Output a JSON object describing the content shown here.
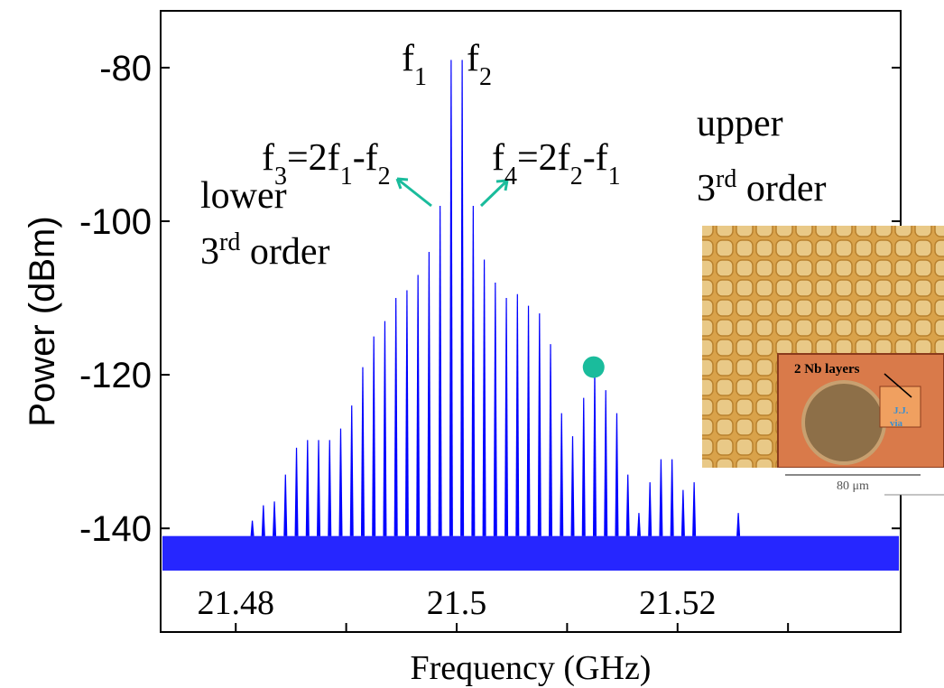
{
  "chart_data": {
    "type": "spectrum",
    "x_label": "Frequency (GHz)",
    "y_label": "Power (dBm)",
    "xlim": [
      21.4732,
      21.5402
    ],
    "ylim": [
      -153.5,
      -72.6
    ],
    "xticks": [
      21.48,
      21.5,
      21.52
    ],
    "xticks_minor": [
      21.49,
      21.51,
      21.53
    ],
    "yticks": [
      -80,
      -100,
      -120,
      -140
    ],
    "color": "#0000ff",
    "noise_band": [
      -145.5,
      -141
    ],
    "x": [
      21.4815,
      21.4825,
      21.4835,
      21.4845,
      21.4855,
      21.4865,
      21.4875,
      21.4885,
      21.4895,
      21.4905,
      21.4915,
      21.4925,
      21.4935,
      21.4945,
      21.4955,
      21.4965,
      21.4975,
      21.4985,
      21.4995,
      21.5005,
      21.5015,
      21.5025,
      21.5035,
      21.5045,
      21.5055,
      21.5065,
      21.5075,
      21.5085,
      21.5095,
      21.5105,
      21.5115,
      21.5125,
      21.5135,
      21.5145,
      21.5155,
      21.5165,
      21.5175,
      21.5185,
      21.5195,
      21.5205,
      21.5215,
      21.5255
    ],
    "values": [
      -139,
      -137,
      -136.5,
      -133,
      -129.5,
      -128.5,
      -128.5,
      -128.5,
      -127,
      -124,
      -119,
      -115,
      -113,
      -110,
      -109,
      -107,
      -104,
      -98,
      -79,
      -79,
      -98,
      -105,
      -108,
      -110,
      -109.5,
      -111,
      -112,
      -116,
      -125,
      -128,
      -123,
      -119,
      -122,
      -125,
      -133,
      -138,
      -134,
      -131,
      -131,
      -135,
      -134,
      -138
    ],
    "marker": {
      "x": 21.5124,
      "y": -119,
      "color": "#1abc9c"
    },
    "annotations": [
      {
        "parts": [
          {
            "text": "f",
            "sub": "1"
          }
        ]
      },
      {
        "parts": [
          {
            "text": "f",
            "sub": "2"
          }
        ]
      },
      {
        "parts": [
          {
            "text": "f",
            "sub": "3"
          },
          {
            "text": "=2f",
            "sub": "1"
          },
          {
            "text": "-f",
            "sub": "2"
          }
        ]
      },
      {
        "parts": [
          {
            "text": "f",
            "sub": "4"
          },
          {
            "text": "=2f",
            "sub": "2"
          },
          {
            "text": "-f",
            "sub": "1"
          }
        ]
      },
      {
        "parts": [
          {
            "text": "lower"
          }
        ]
      },
      {
        "parts": [
          {
            "text": "3",
            "sup": "rd"
          },
          {
            "text": " order"
          }
        ]
      },
      {
        "parts": [
          {
            "text": "upper"
          }
        ]
      },
      {
        "parts": [
          {
            "text": "3",
            "sup": "rd"
          },
          {
            "text": " order"
          }
        ]
      }
    ]
  },
  "inset": {
    "layers_label": "2 Nb layers",
    "jj_via": [
      "J.J.",
      "via"
    ],
    "scale_label": "80 μm"
  }
}
